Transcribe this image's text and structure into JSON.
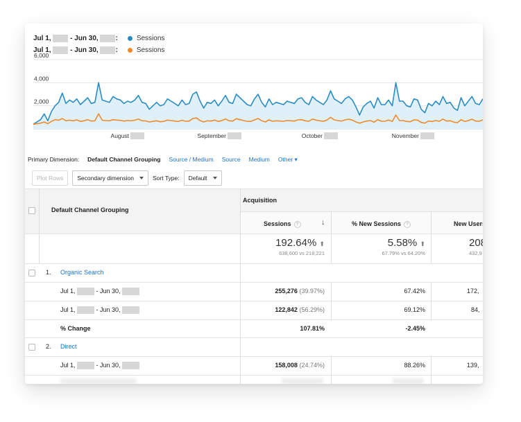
{
  "legend": [
    {
      "label_start": "Jul 1, ",
      "label_mid": " - Jun 30, ",
      "label_end": ":",
      "series": "Sessions",
      "color": "#2a8cc4"
    },
    {
      "label_start": "Jul 1, ",
      "label_mid": " - Jun 30, ",
      "label_end": ":",
      "series": "Sessions",
      "color": "#f0892c"
    }
  ],
  "chart_data": {
    "type": "line",
    "y_ticks": [
      "6,000",
      "4,000",
      "2,000"
    ],
    "ylim": [
      0,
      6000
    ],
    "x_labels": [
      "August",
      "September",
      "October",
      "November"
    ],
    "grid": true,
    "series": [
      {
        "name": "Sessions",
        "color": "#2a8cc4",
        "values": [
          400,
          600,
          800,
          1300,
          700,
          1500,
          2000,
          2300,
          3100,
          2200,
          2500,
          2300,
          2600,
          2100,
          2400,
          2700,
          2200,
          2300,
          4000,
          2500,
          2400,
          2300,
          2800,
          2600,
          2500,
          2200,
          2400,
          2300,
          2500,
          2900,
          2300,
          2200,
          1700,
          2000,
          2300,
          2000,
          2100,
          2600,
          2400,
          2200,
          2000,
          2500,
          2100,
          2200,
          3000,
          3200,
          2400,
          1800,
          2300,
          2200,
          2500,
          2000,
          2400,
          2900,
          2300,
          2200,
          3000,
          2700,
          2400,
          2100,
          2000,
          2600,
          3000,
          2300,
          1900,
          2600,
          2100,
          2300,
          2200,
          2100,
          2400,
          2300,
          2200,
          2600,
          2700,
          2300,
          2100,
          2800,
          2500,
          2300,
          2100,
          2500,
          3300,
          2600,
          2400,
          2200,
          2600,
          2800,
          2500,
          1900,
          1200,
          1900,
          2200,
          2400,
          1800,
          2700,
          2100,
          2100,
          2500,
          2000,
          4000,
          2400,
          2400,
          2000,
          1900,
          2600,
          2500,
          1700,
          1400,
          2200,
          2000,
          2400,
          2100,
          2800,
          2200,
          2300,
          1800,
          1600,
          2700,
          2000,
          2400,
          2800,
          2200,
          2100,
          2600
        ]
      },
      {
        "name": "Sessions",
        "color": "#f0892c",
        "values": [
          400,
          450,
          500,
          600,
          450,
          650,
          800,
          750,
          900,
          700,
          750,
          700,
          780,
          650,
          700,
          800,
          680,
          700,
          1300,
          750,
          720,
          700,
          800,
          760,
          740,
          680,
          720,
          700,
          750,
          850,
          700,
          690,
          600,
          650,
          700,
          620,
          650,
          760,
          720,
          680,
          640,
          750,
          660,
          680,
          900,
          950,
          720,
          600,
          700,
          680,
          760,
          640,
          720,
          860,
          700,
          680,
          880,
          800,
          720,
          660,
          640,
          780,
          900,
          700,
          600,
          780,
          660,
          700,
          680,
          660,
          720,
          700,
          680,
          780,
          800,
          700,
          660,
          850,
          760,
          700,
          660,
          760,
          1000,
          780,
          720,
          680,
          780,
          840,
          760,
          600,
          500,
          600,
          680,
          720,
          580,
          800,
          660,
          660,
          760,
          640,
          1200,
          720,
          720,
          640,
          620,
          780,
          760,
          560,
          500,
          680,
          640,
          720,
          660,
          850,
          680,
          700,
          580,
          540,
          800,
          640,
          720,
          840,
          680,
          660,
          780
        ]
      }
    ]
  },
  "dimensions": {
    "label": "Primary Dimension:",
    "current": "Default Channel Grouping",
    "links": [
      "Source / Medium",
      "Source",
      "Medium",
      "Other"
    ]
  },
  "toolbar": {
    "plot_rows": "Plot Rows",
    "secondary": "Secondary dimension",
    "sort_label": "Sort Type:",
    "sort_value": "Default"
  },
  "table": {
    "dim_header": "Default Channel Grouping",
    "group_header": "Acquisition",
    "col_sessions": "Sessions",
    "col_new_sessions": "% New Sessions",
    "col_new_users": "New Users",
    "totals": {
      "sessions_pct": "192.64%",
      "sessions_sub": "638,600 vs 218,221",
      "new_sessions_pct": "5.58%",
      "new_sessions_sub": "67.79% vs 64.20%",
      "new_users": "208",
      "new_users_sub": "432,9"
    },
    "rows": [
      {
        "num": "1.",
        "name": "Organic Search"
      },
      {
        "date": "Jul 1,  - Jun 30, ",
        "sessions": "255,276",
        "sessions_pct": "(39.97%)",
        "new_sessions": "67.42%",
        "new_users": "172,"
      },
      {
        "date": "Jul 1,  - Jun 30, ",
        "sessions": "122,842",
        "sessions_pct": "(56.29%)",
        "new_sessions": "69.12%",
        "new_users": "84,"
      },
      {
        "change_label": "% Change",
        "sessions": "107.81%",
        "new_sessions": "-2.45%"
      },
      {
        "num": "2.",
        "name": "Direct"
      },
      {
        "date": "Jul 1,  - Jun 30, ",
        "sessions": "158,008",
        "sessions_pct": "(24.74%)",
        "new_sessions": "88.26%",
        "new_users": "139,"
      }
    ]
  }
}
